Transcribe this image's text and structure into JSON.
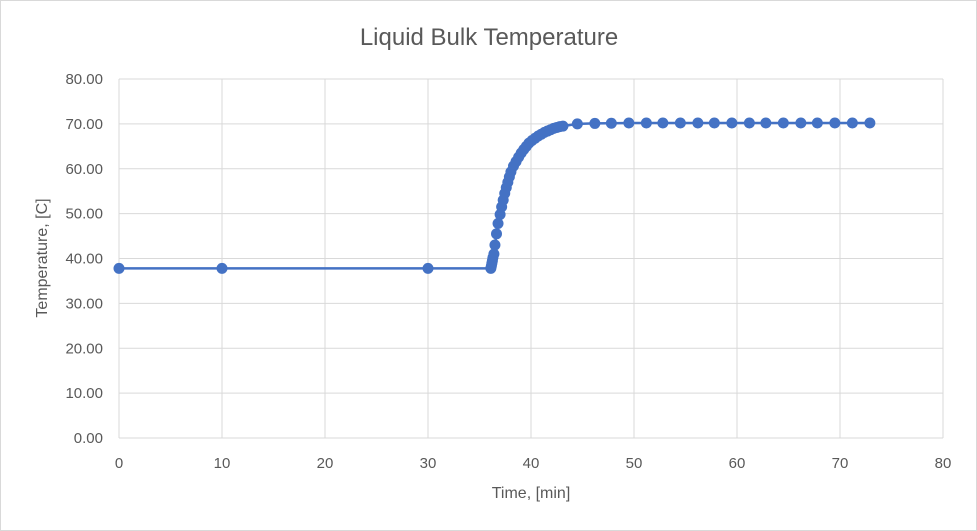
{
  "chart_data": {
    "type": "scatter",
    "title": "Liquid Bulk Temperature",
    "xlabel": "Time, [min]",
    "ylabel": "Temperature, [C]",
    "xlim": [
      0,
      80
    ],
    "ylim": [
      0,
      80
    ],
    "x_ticks": [
      "0",
      "10",
      "20",
      "30",
      "40",
      "50",
      "60",
      "70",
      "80"
    ],
    "y_ticks": [
      "0.00",
      "10.00",
      "20.00",
      "30.00",
      "40.00",
      "50.00",
      "60.00",
      "70.00",
      "80.00"
    ],
    "grid": true,
    "legend": "none",
    "series_color": "#4472c4",
    "series": [
      {
        "points": [
          [
            0,
            37.8
          ],
          [
            10,
            37.8
          ],
          [
            30,
            37.8
          ],
          [
            36.1,
            37.8
          ],
          [
            36.15,
            38.3
          ],
          [
            36.2,
            38.9
          ],
          [
            36.25,
            39.5
          ],
          [
            36.3,
            40.2
          ],
          [
            36.4,
            41.0
          ],
          [
            36.5,
            43.0
          ],
          [
            36.65,
            45.5
          ],
          [
            36.8,
            47.8
          ],
          [
            37.0,
            49.8
          ],
          [
            37.15,
            51.5
          ],
          [
            37.3,
            53.0
          ],
          [
            37.45,
            54.5
          ],
          [
            37.6,
            55.8
          ],
          [
            37.75,
            57.0
          ],
          [
            37.9,
            58.2
          ],
          [
            38.05,
            59.3
          ],
          [
            38.3,
            60.6
          ],
          [
            38.55,
            61.6
          ],
          [
            38.8,
            62.6
          ],
          [
            39.05,
            63.5
          ],
          [
            39.3,
            64.3
          ],
          [
            39.55,
            65.0
          ],
          [
            39.8,
            65.7
          ],
          [
            40.1,
            66.3
          ],
          [
            40.4,
            66.8
          ],
          [
            40.7,
            67.3
          ],
          [
            41.0,
            67.7
          ],
          [
            41.3,
            68.1
          ],
          [
            41.6,
            68.4
          ],
          [
            41.9,
            68.7
          ],
          [
            42.2,
            69.0
          ],
          [
            42.5,
            69.2
          ],
          [
            42.8,
            69.4
          ],
          [
            43.1,
            69.5
          ],
          [
            44.5,
            70.0
          ],
          [
            46.2,
            70.1
          ],
          [
            47.8,
            70.15
          ],
          [
            49.5,
            70.2
          ],
          [
            51.2,
            70.2
          ],
          [
            52.8,
            70.2
          ],
          [
            54.5,
            70.2
          ],
          [
            56.2,
            70.2
          ],
          [
            57.8,
            70.2
          ],
          [
            59.5,
            70.2
          ],
          [
            61.2,
            70.2
          ],
          [
            62.8,
            70.2
          ],
          [
            64.5,
            70.2
          ],
          [
            66.2,
            70.2
          ],
          [
            67.8,
            70.2
          ],
          [
            69.5,
            70.2
          ],
          [
            71.2,
            70.2
          ],
          [
            72.9,
            70.2
          ]
        ]
      }
    ]
  }
}
